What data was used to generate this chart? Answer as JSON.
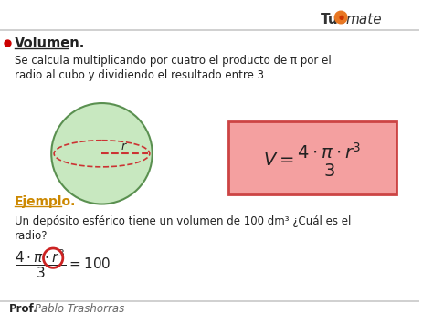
{
  "bg_color": "#ffffff",
  "border_color": "#c8c8c8",
  "title_color": "#cc0000",
  "text_color": "#222222",
  "orange_color": "#e87722",
  "example_color": "#cc8800",
  "formula_bg": "#f4a0a0",
  "formula_border": "#cc4444",
  "sphere_fill": "#c8e8c0",
  "sphere_border": "#5a9050",
  "dashed_color": "#cc3333",
  "circle_highlight": "#cc2222",
  "tutomate_color": "#333333",
  "footer_bold": "Prof.",
  "footer_italic": " Pablo Trashorras",
  "title_text": "Volumen.",
  "line1": "Se calcula multiplicando por cuatro el producto de π por el",
  "line2": "radio al cubo y dividiendo el resultado entre 3.",
  "example_label": "Ejemplo.",
  "example_line1": "Un depósito esférico tiene un volumen de 100 dm³ ¿Cuál es el",
  "example_line2": "radio?"
}
